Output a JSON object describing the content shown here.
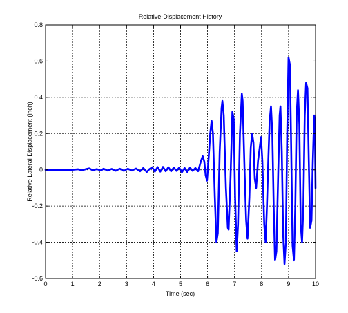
{
  "chart_data": {
    "type": "line",
    "title": "Relative-Displacement History",
    "xlabel": "Time (sec)",
    "ylabel": "Relative Lateral Displacement (inch)",
    "xlim": [
      0,
      10
    ],
    "ylim": [
      -0.6,
      0.8
    ],
    "grid": true,
    "x_ticks": [
      "0",
      "1",
      "2",
      "3",
      "4",
      "5",
      "6",
      "7",
      "8",
      "9",
      "10"
    ],
    "y_ticks": [
      "-0.6",
      "-0.4",
      "-0.2",
      "0",
      "0.2",
      "0.4",
      "0.6",
      "0.8"
    ],
    "series": [
      {
        "color": "#0000ff",
        "points": [
          [
            0.0,
            0.0
          ],
          [
            0.5,
            0.0
          ],
          [
            1.0,
            0.0
          ],
          [
            1.2,
            0.003
          ],
          [
            1.35,
            -0.003
          ],
          [
            1.5,
            0.004
          ],
          [
            1.62,
            0.008
          ],
          [
            1.75,
            -0.003
          ],
          [
            1.9,
            0.004
          ],
          [
            2.05,
            -0.004
          ],
          [
            2.15,
            0.006
          ],
          [
            2.3,
            -0.004
          ],
          [
            2.45,
            0.005
          ],
          [
            2.6,
            -0.005
          ],
          [
            2.75,
            0.006
          ],
          [
            2.9,
            -0.006
          ],
          [
            3.05,
            0.006
          ],
          [
            3.2,
            -0.004
          ],
          [
            3.35,
            0.007
          ],
          [
            3.5,
            -0.008
          ],
          [
            3.62,
            0.01
          ],
          [
            3.75,
            -0.012
          ],
          [
            3.85,
            0.004
          ],
          [
            3.95,
            0.014
          ],
          [
            4.05,
            -0.01
          ],
          [
            4.15,
            0.015
          ],
          [
            4.25,
            -0.01
          ],
          [
            4.35,
            0.016
          ],
          [
            4.45,
            -0.008
          ],
          [
            4.55,
            0.014
          ],
          [
            4.65,
            -0.008
          ],
          [
            4.75,
            0.012
          ],
          [
            4.85,
            -0.006
          ],
          [
            4.95,
            0.012
          ],
          [
            5.05,
            -0.014
          ],
          [
            5.15,
            0.01
          ],
          [
            5.25,
            -0.012
          ],
          [
            5.35,
            0.012
          ],
          [
            5.45,
            -0.006
          ],
          [
            5.55,
            0.01
          ],
          [
            5.65,
            -0.008
          ],
          [
            5.75,
            0.045
          ],
          [
            5.82,
            0.075
          ],
          [
            5.88,
            0.045
          ],
          [
            5.93,
            -0.03
          ],
          [
            5.98,
            -0.06
          ],
          [
            6.02,
            0.02
          ],
          [
            6.1,
            0.2
          ],
          [
            6.15,
            0.27
          ],
          [
            6.2,
            0.2
          ],
          [
            6.27,
            -0.15
          ],
          [
            6.33,
            -0.4
          ],
          [
            6.38,
            -0.35
          ],
          [
            6.45,
            0.1
          ],
          [
            6.52,
            0.34
          ],
          [
            6.55,
            0.38
          ],
          [
            6.6,
            0.3
          ],
          [
            6.68,
            -0.1
          ],
          [
            6.75,
            -0.32
          ],
          [
            6.78,
            -0.33
          ],
          [
            6.85,
            -0.05
          ],
          [
            6.92,
            0.32
          ],
          [
            6.97,
            0.28
          ],
          [
            7.02,
            -0.15
          ],
          [
            7.08,
            -0.45
          ],
          [
            7.13,
            -0.3
          ],
          [
            7.2,
            0.2
          ],
          [
            7.27,
            0.42
          ],
          [
            7.3,
            0.38
          ],
          [
            7.37,
            0.0
          ],
          [
            7.43,
            -0.28
          ],
          [
            7.48,
            -0.38
          ],
          [
            7.55,
            -0.15
          ],
          [
            7.6,
            0.12
          ],
          [
            7.65,
            0.2
          ],
          [
            7.7,
            0.15
          ],
          [
            7.75,
            -0.05
          ],
          [
            7.8,
            -0.1
          ],
          [
            7.87,
            0.05
          ],
          [
            7.93,
            0.12
          ],
          [
            7.98,
            0.18
          ],
          [
            8.03,
            0.05
          ],
          [
            8.1,
            -0.3
          ],
          [
            8.15,
            -0.4
          ],
          [
            8.2,
            -0.2
          ],
          [
            8.25,
            0.05
          ],
          [
            8.3,
            0.27
          ],
          [
            8.35,
            0.35
          ],
          [
            8.4,
            0.2
          ],
          [
            8.45,
            -0.2
          ],
          [
            8.5,
            -0.5
          ],
          [
            8.55,
            -0.45
          ],
          [
            8.62,
            0.0
          ],
          [
            8.67,
            0.3
          ],
          [
            8.7,
            0.35
          ],
          [
            8.75,
            0.1
          ],
          [
            8.8,
            -0.35
          ],
          [
            8.85,
            -0.52
          ],
          [
            8.9,
            -0.4
          ],
          [
            8.95,
            0.2
          ],
          [
            9.0,
            0.62
          ],
          [
            9.05,
            0.58
          ],
          [
            9.1,
            0.1
          ],
          [
            9.15,
            -0.42
          ],
          [
            9.2,
            -0.5
          ],
          [
            9.25,
            -0.2
          ],
          [
            9.3,
            0.3
          ],
          [
            9.35,
            0.44
          ],
          [
            9.4,
            0.25
          ],
          [
            9.45,
            -0.3
          ],
          [
            9.5,
            -0.4
          ],
          [
            9.55,
            -0.2
          ],
          [
            9.6,
            0.3
          ],
          [
            9.65,
            0.48
          ],
          [
            9.7,
            0.45
          ],
          [
            9.75,
            0.05
          ],
          [
            9.8,
            -0.32
          ],
          [
            9.85,
            -0.28
          ],
          [
            9.9,
            0.05
          ],
          [
            9.95,
            0.3
          ],
          [
            9.98,
            0.2
          ],
          [
            10.0,
            -0.1
          ]
        ]
      }
    ]
  }
}
